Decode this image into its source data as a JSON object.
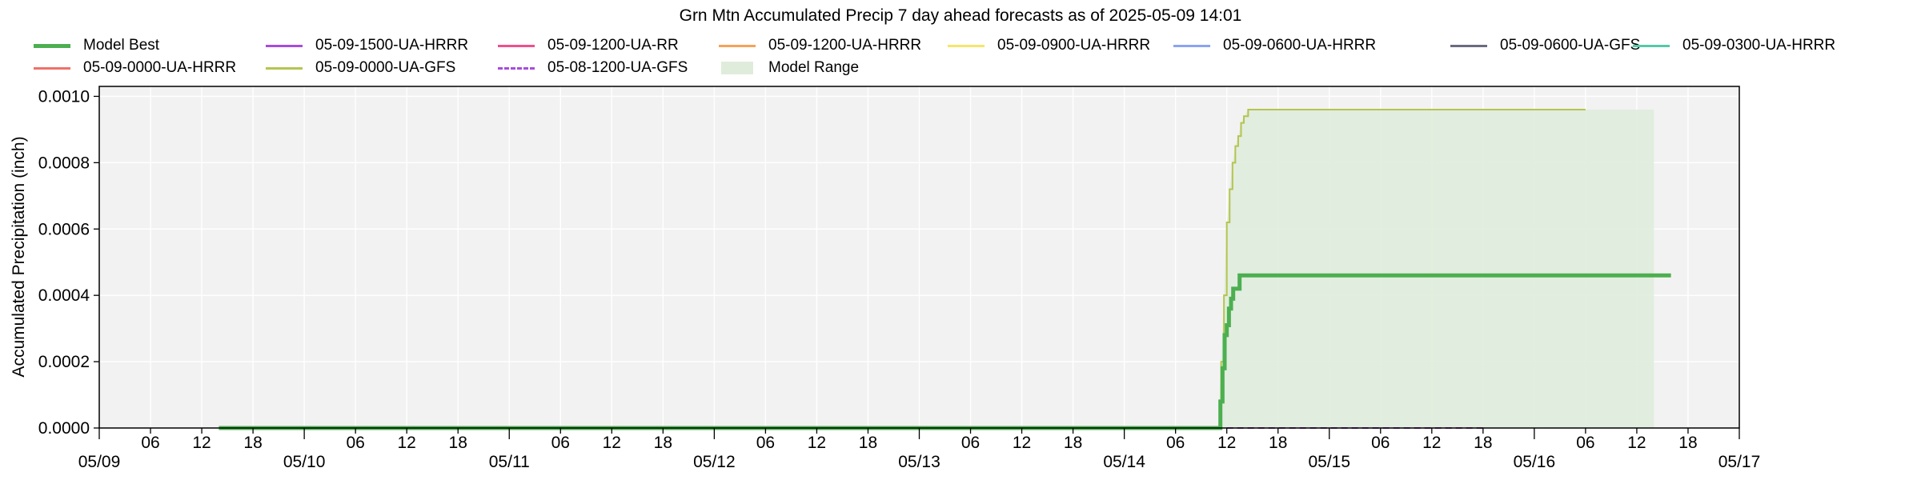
{
  "chart_data": {
    "type": "line",
    "title": "Grn Mtn Accumulated Precip 7 day ahead forecasts as of 2025-05-09 14:01",
    "xlabel": "",
    "ylabel": "Accumulated Precipitation (inch)",
    "xlim": [
      "2025-05-09 00:00",
      "2025-05-17 00:00"
    ],
    "ylim": [
      0,
      0.00103
    ],
    "yticks": [
      "0.0000",
      "0.0002",
      "0.0004",
      "0.0006",
      "0.0008",
      "0.0010"
    ],
    "ytick_values": [
      0,
      0.0002,
      0.0004,
      0.0006,
      0.0008,
      0.001
    ],
    "xtick_major": [
      {
        "t": "2025-05-09 00:00",
        "label": "05/09"
      },
      {
        "t": "2025-05-10 00:00",
        "label": "05/10"
      },
      {
        "t": "2025-05-11 00:00",
        "label": "05/11"
      },
      {
        "t": "2025-05-12 00:00",
        "label": "05/12"
      },
      {
        "t": "2025-05-13 00:00",
        "label": "05/13"
      },
      {
        "t": "2025-05-14 00:00",
        "label": "05/14"
      },
      {
        "t": "2025-05-15 00:00",
        "label": "05/15"
      },
      {
        "t": "2025-05-16 00:00",
        "label": "05/16"
      },
      {
        "t": "2025-05-17 00:00",
        "label": "05/17"
      }
    ],
    "xtick_minor_labels": [
      "06",
      "12",
      "18"
    ],
    "grid": true,
    "legend_position": "top",
    "legend_rows": [
      [
        "Model Best",
        "05-09-1500-UA-HRRR",
        "05-09-1200-UA-RR",
        "05-09-1200-UA-HRRR",
        "05-09-0900-UA-HRRR",
        "05-09-0600-UA-HRRR",
        "05-09-0600-UA-GFS",
        "05-09-0300-UA-HRRR"
      ],
      [
        "05-09-0000-UA-HRRR",
        "05-09-0000-UA-GFS",
        "05-08-1200-UA-GFS",
        "Model Range"
      ]
    ],
    "series": [
      {
        "name": "Model Best",
        "color": "#4caf50",
        "style": "solid",
        "width": 5,
        "points": [
          [
            "2025-05-09 14:00",
            0
          ],
          [
            "2025-05-14 11:00",
            0
          ],
          [
            "2025-05-14 11:15",
            8e-05
          ],
          [
            "2025-05-14 11:30",
            0.00018
          ],
          [
            "2025-05-14 11:45",
            0.00028
          ],
          [
            "2025-05-14 12:00",
            0.00031
          ],
          [
            "2025-05-14 12:15",
            0.00036
          ],
          [
            "2025-05-14 12:30",
            0.00039
          ],
          [
            "2025-05-14 12:45",
            0.00042
          ],
          [
            "2025-05-14 13:30",
            0.00046
          ],
          [
            "2025-05-16 16:00",
            0.00046
          ]
        ]
      },
      {
        "name": "05-09-1500-UA-HRRR",
        "color": "#a64ddb",
        "style": "solid",
        "width": 2,
        "points": []
      },
      {
        "name": "05-09-1200-UA-RR",
        "color": "#f0508c",
        "style": "solid",
        "width": 2,
        "points": []
      },
      {
        "name": "05-09-1200-UA-HRRR",
        "color": "#f5a25a",
        "style": "solid",
        "width": 2,
        "points": []
      },
      {
        "name": "05-09-0900-UA-HRRR",
        "color": "#f5e56b",
        "style": "solid",
        "width": 2,
        "points": []
      },
      {
        "name": "05-09-0600-UA-HRRR",
        "color": "#8aa4f2",
        "style": "solid",
        "width": 2,
        "points": []
      },
      {
        "name": "05-09-0600-UA-GFS",
        "color": "#6a6a80",
        "style": "solid",
        "width": 2,
        "points": []
      },
      {
        "name": "05-09-0300-UA-HRRR",
        "color": "#55c9a8",
        "style": "solid",
        "width": 2,
        "points": []
      },
      {
        "name": "05-09-0000-UA-HRRR",
        "color": "#f07168",
        "style": "solid",
        "width": 2,
        "points": []
      },
      {
        "name": "05-09-0000-UA-GFS",
        "color": "#b5c450",
        "style": "solid",
        "width": 2,
        "points": [
          [
            "2025-05-14 11:00",
            0
          ],
          [
            "2025-05-14 11:20",
            0.0002
          ],
          [
            "2025-05-14 11:40",
            0.0004
          ],
          [
            "2025-05-14 12:00",
            0.00062
          ],
          [
            "2025-05-14 12:20",
            0.00072
          ],
          [
            "2025-05-14 12:40",
            0.0008
          ],
          [
            "2025-05-14 13:00",
            0.00085
          ],
          [
            "2025-05-14 13:20",
            0.00088
          ],
          [
            "2025-05-14 13:40",
            0.00092
          ],
          [
            "2025-05-14 14:00",
            0.00094
          ],
          [
            "2025-05-14 14:30",
            0.00096
          ],
          [
            "2025-05-16 06:00",
            0.00096
          ]
        ]
      },
      {
        "name": "05-08-1200-UA-GFS",
        "color": "#a64ddb",
        "style": "dashed",
        "width": 2,
        "points": [
          [
            "2025-05-14 12:00",
            0
          ],
          [
            "2025-05-15 18:00",
            0
          ]
        ]
      }
    ],
    "range": {
      "name": "Model Range",
      "color": "#dfecdc",
      "upper": [
        [
          "2025-05-14 11:00",
          0
        ],
        [
          "2025-05-14 11:20",
          0.0002
        ],
        [
          "2025-05-14 11:40",
          0.0004
        ],
        [
          "2025-05-14 12:00",
          0.00062
        ],
        [
          "2025-05-14 12:20",
          0.00072
        ],
        [
          "2025-05-14 12:40",
          0.0008
        ],
        [
          "2025-05-14 13:00",
          0.00085
        ],
        [
          "2025-05-14 13:20",
          0.00088
        ],
        [
          "2025-05-14 13:40",
          0.00092
        ],
        [
          "2025-05-14 14:00",
          0.00094
        ],
        [
          "2025-05-14 14:30",
          0.00096
        ],
        [
          "2025-05-16 14:00",
          0.00096
        ]
      ],
      "lower": 0
    }
  }
}
